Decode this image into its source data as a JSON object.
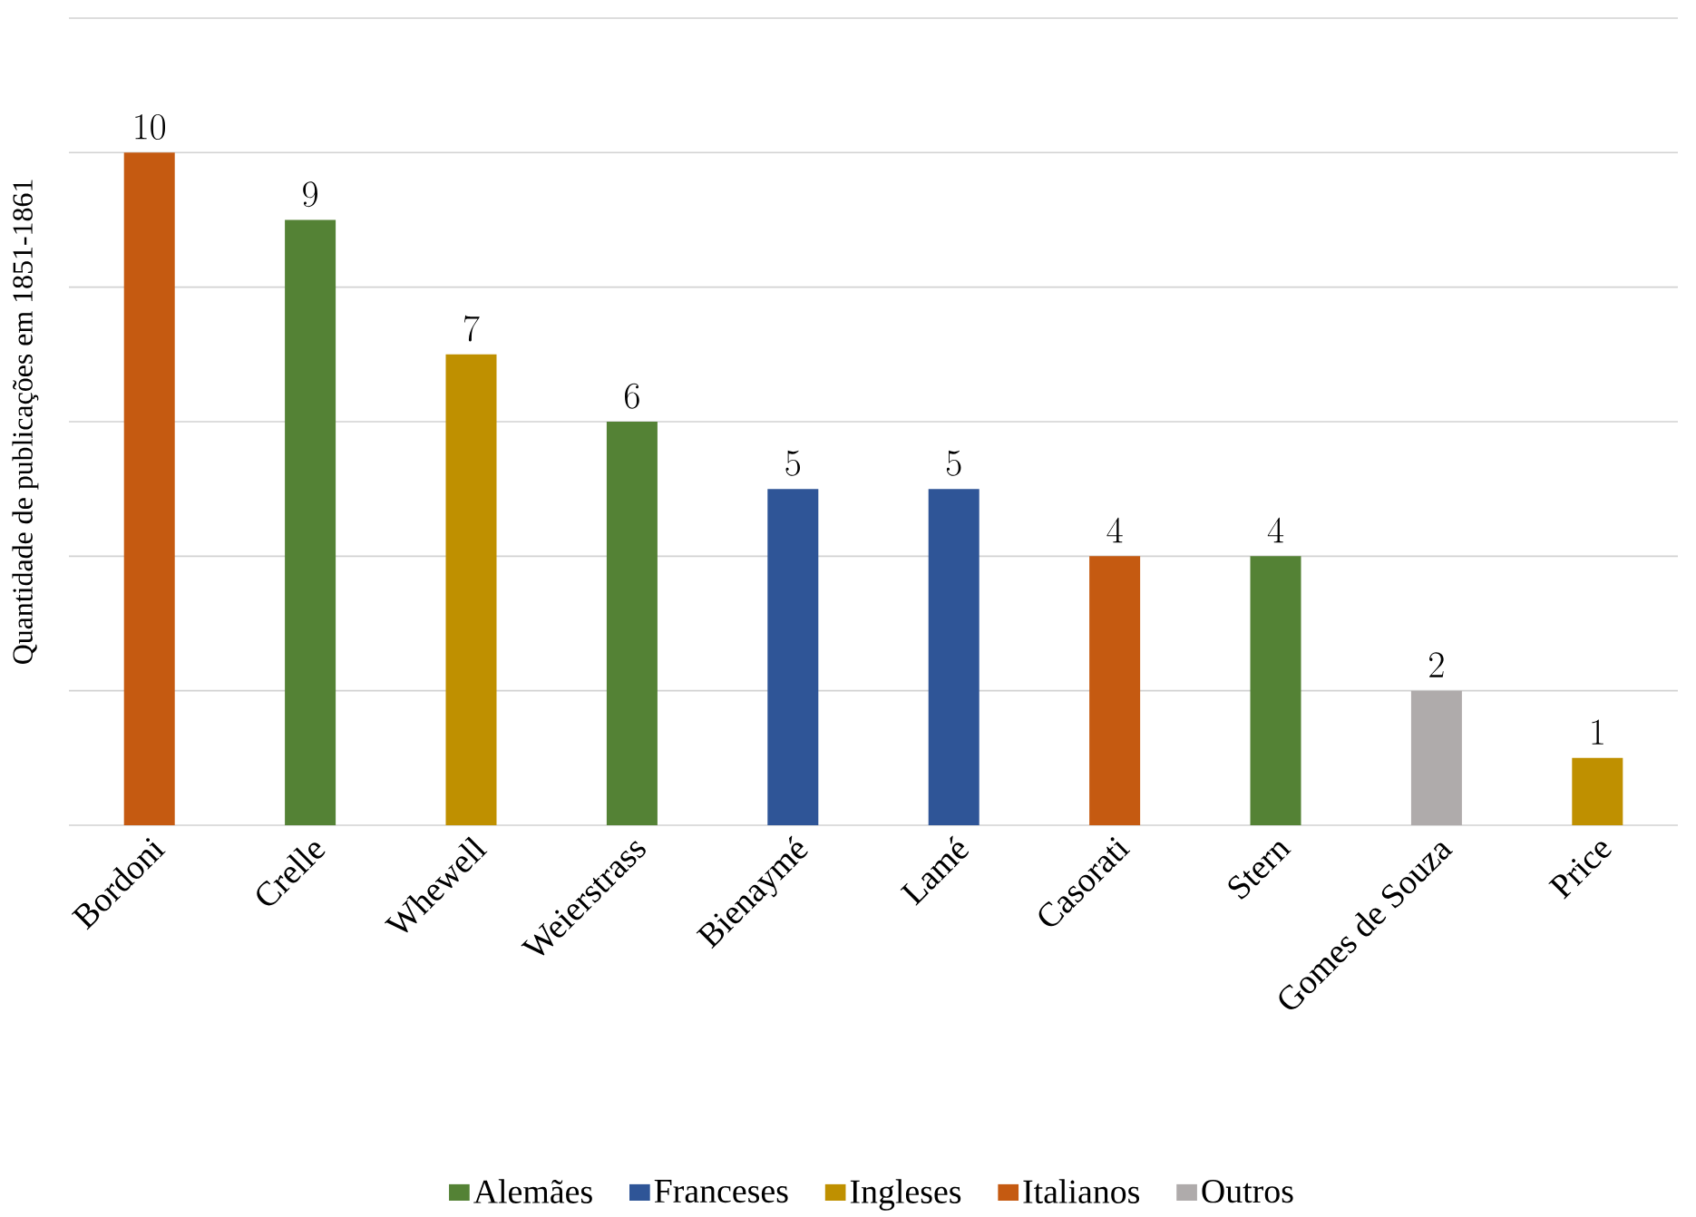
{
  "chart_data": {
    "type": "bar",
    "ylabel": "Quantidade de publicações em 1851-1861",
    "categories": [
      "Bordoni",
      "Crelle",
      "Whewell",
      "Weierstrass",
      "Bienaymé",
      "Lamé",
      "Casorati",
      "Stern",
      "Gomes de Souza",
      "Price"
    ],
    "series": [
      {
        "name": "Alemães",
        "color": "#548235",
        "values": [
          null,
          9,
          null,
          6,
          null,
          null,
          null,
          4,
          null,
          null
        ]
      },
      {
        "name": "Franceses",
        "color": "#2f5597",
        "values": [
          null,
          null,
          null,
          null,
          5,
          5,
          null,
          null,
          null,
          null
        ]
      },
      {
        "name": "Ingleses",
        "color": "#bf9000",
        "values": [
          null,
          null,
          7,
          null,
          null,
          null,
          null,
          null,
          null,
          1
        ]
      },
      {
        "name": "Italianos",
        "color": "#c55a11",
        "values": [
          10,
          null,
          null,
          null,
          null,
          null,
          4,
          null,
          null,
          null
        ]
      },
      {
        "name": "Outros",
        "color": "#afabab",
        "values": [
          null,
          null,
          null,
          null,
          null,
          null,
          null,
          null,
          2,
          null
        ]
      }
    ],
    "ylim": [
      0,
      12
    ],
    "yticks": [
      {
        "value": 0,
        "label": null
      },
      {
        "value": 2,
        "label": null
      },
      {
        "value": 4,
        "label": null
      },
      {
        "value": 6,
        "label": null
      },
      {
        "value": 8,
        "label": null
      },
      {
        "value": 10,
        "label": null
      },
      {
        "value": 12,
        "label": null
      }
    ],
    "tick_labels": "x",
    "grid": "y",
    "data_labels": true,
    "legend": "bottom"
  }
}
